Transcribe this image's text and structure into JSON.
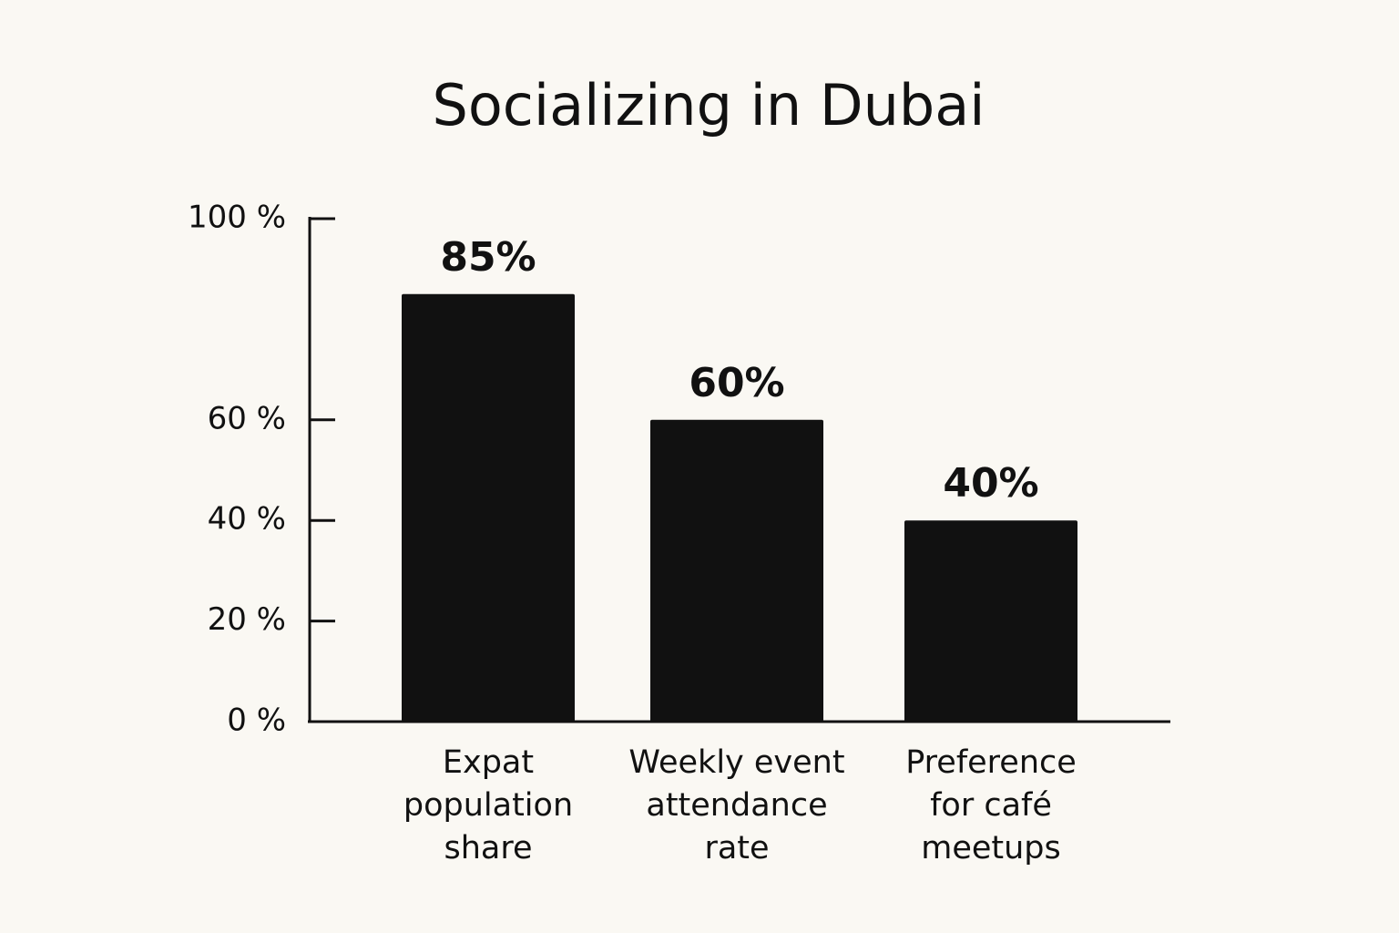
{
  "chart_data": {
    "type": "bar",
    "title": "Socializing in Dubai",
    "categories": [
      "Expat population share",
      "Weekly event attendance rate",
      "Preference for café meetups"
    ],
    "values": [
      85,
      60,
      40
    ],
    "value_labels": [
      "85%",
      "60%",
      "40%"
    ],
    "color": "#111111",
    "ylim": [
      0,
      100
    ],
    "yticks": [
      {
        "value": 0,
        "label": "0 %"
      },
      {
        "value": 20,
        "label": "20 %"
      },
      {
        "value": 40,
        "label": "40 %"
      },
      {
        "value": 60,
        "label": "60 %"
      },
      {
        "value": 100,
        "label": "100 %"
      }
    ],
    "grid": false
  }
}
